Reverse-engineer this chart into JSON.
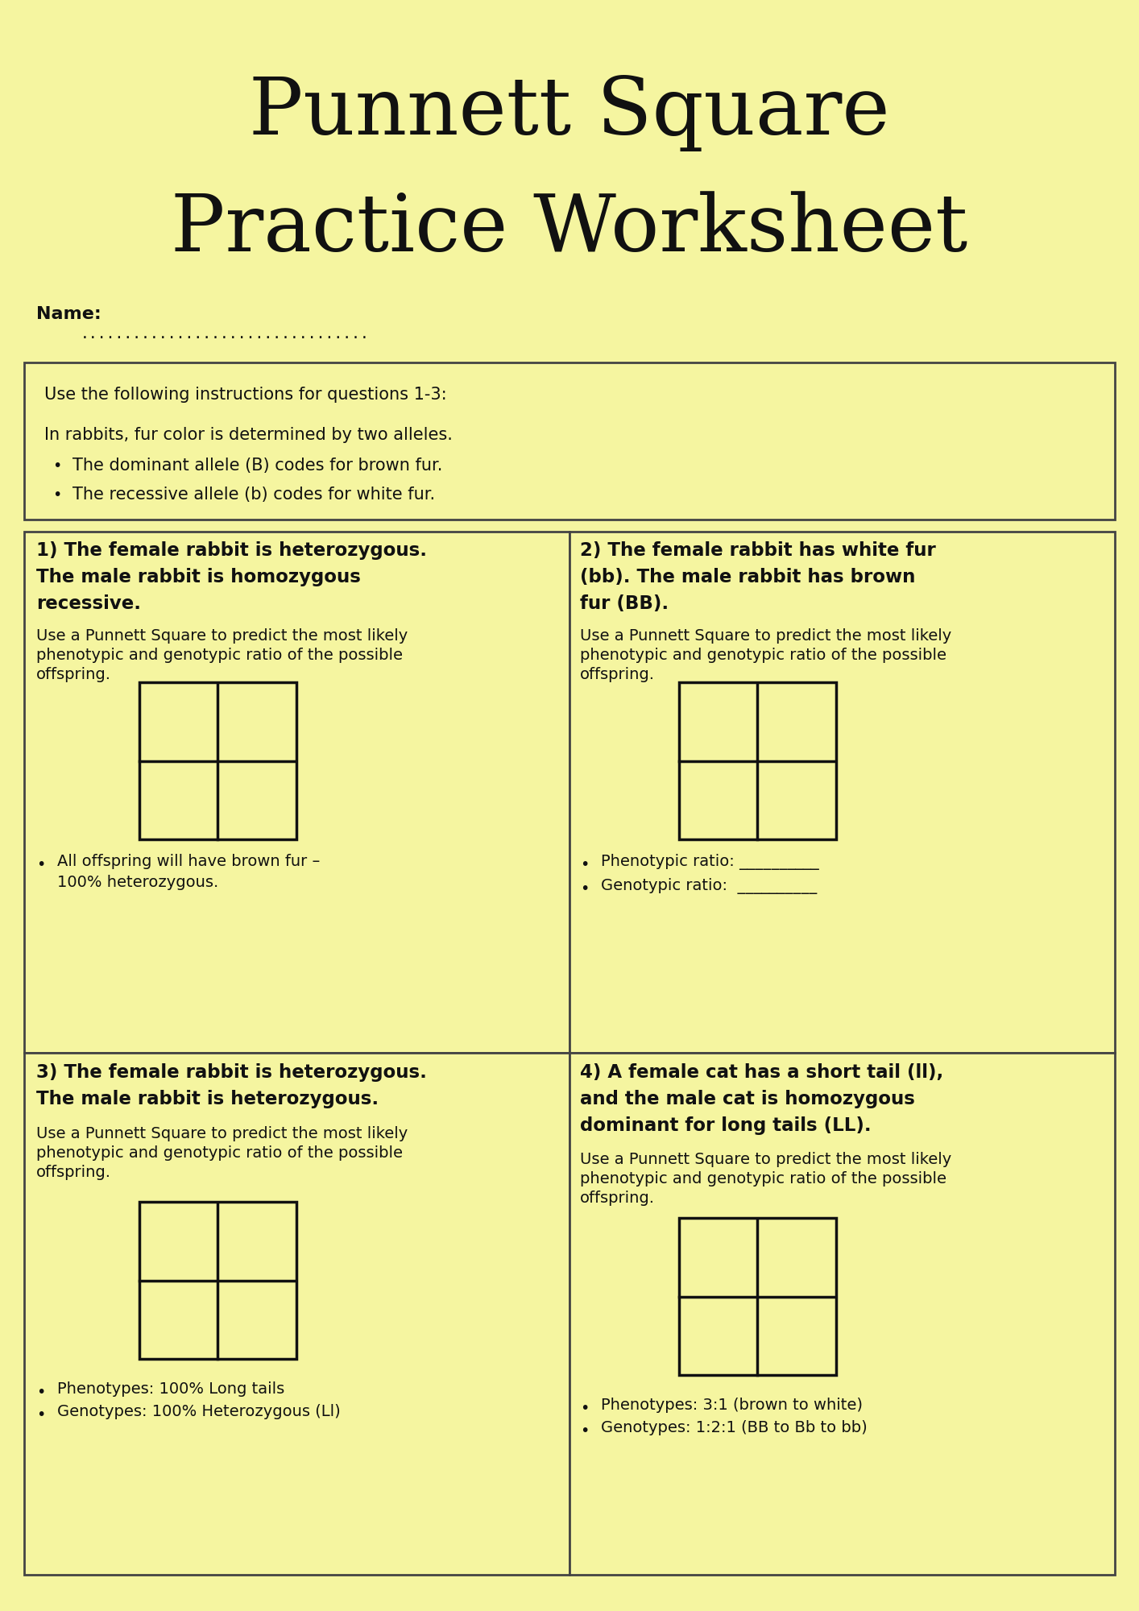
{
  "bg_color": "#f5f5a0",
  "title_line1": "Punnett Square",
  "title_line2": "Practice Worksheet",
  "name_label": "Name:",
  "name_dots": ".................................",
  "instructions_header": "Use the following instructions for questions 1-3:",
  "instructions_body": "In rabbits, fur color is determined by two alleles.",
  "bullet1": "The dominant allele (B) codes for brown fur.",
  "bullet2": "The recessive allele (b) codes for white fur.",
  "q1_title_l1": "1) The female rabbit is heterozygous.",
  "q1_title_l2": "The male rabbit is homozygous",
  "q1_title_l3": "recessive.",
  "q2_title_l1": "2) The female rabbit has white fur",
  "q2_title_l2": "(bb). The male rabbit has brown",
  "q2_title_l3": "fur (BB).",
  "q3_title_l1": "3) The female rabbit is heterozygous.",
  "q3_title_l2": "The male rabbit is heterozygous.",
  "q4_title_l1": "4) A female cat has a short tail (ll),",
  "q4_title_l2": "and the male cat is homozygous",
  "q4_title_l3": "dominant for long tails (LL).",
  "instructions_sub_l1": "Use a Punnett Square to predict the most likely",
  "instructions_sub_l2": "phenotypic and genotypic ratio of the possible",
  "instructions_sub_l3": "offspring.",
  "q1_answer1": "All offspring will have brown fur –",
  "q1_answer2": "100% heterozygous.",
  "q2_answer1": "Phenotypic ratio: __________",
  "q2_answer2": "Genotypic ratio:  __________",
  "q3_answer1": "Phenotypes: 100% Long tails",
  "q3_answer2": "Genotypes: 100% Heterozygous (Ll)",
  "q4_answer1": "Phenotypes: 3:1 (brown to white)",
  "q4_answer2": "Genotypes: 1:2:1 (BB to Bb to bb)"
}
